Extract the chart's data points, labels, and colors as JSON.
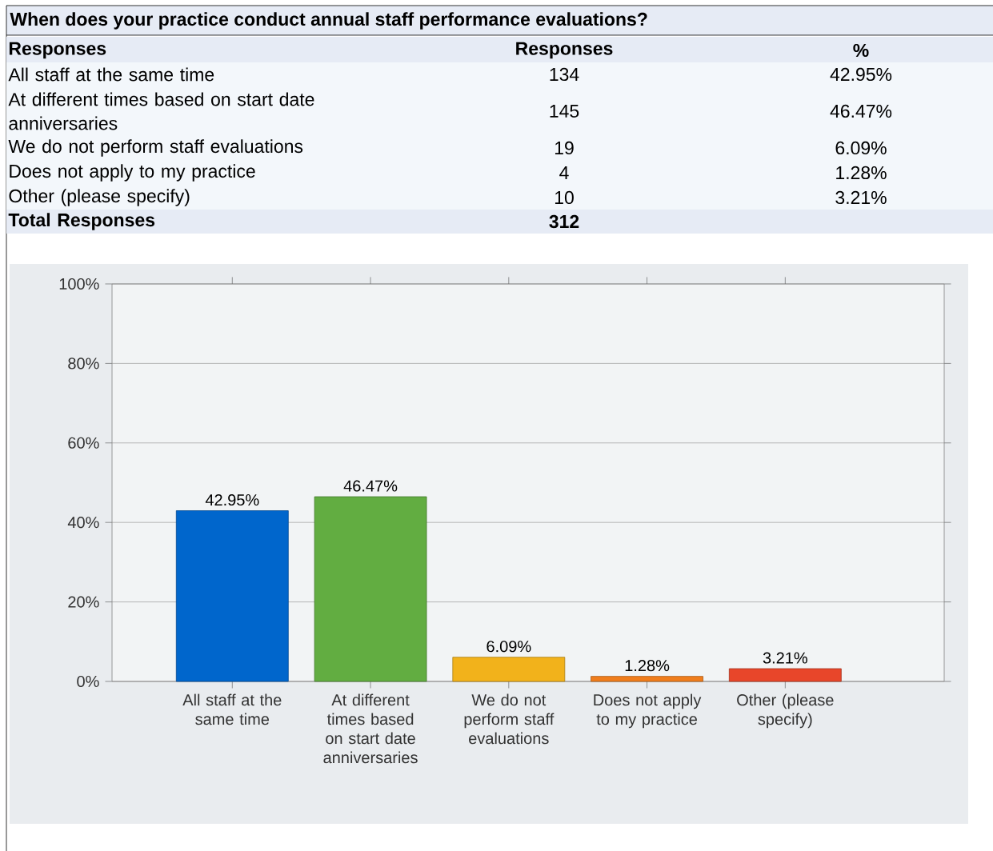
{
  "chart_data": {
    "type": "bar",
    "title": "When does your practice conduct annual staff performance evaluations?",
    "categories": [
      "All staff at the same time",
      "At different times based on start date anniversaries",
      "We do not perform staff evaluations",
      "Does not apply to my practice",
      "Other (please specify)"
    ],
    "values": [
      42.95,
      46.47,
      6.09,
      1.28,
      3.21
    ],
    "colors": [
      "#0066cc",
      "#62ad41",
      "#f2b21b",
      "#f07d1c",
      "#e8462a"
    ],
    "value_labels": [
      "42.95%",
      "46.47%",
      "6.09%",
      "1.28%",
      "3.21%"
    ],
    "ylim": [
      0,
      100
    ],
    "yticks": [
      {
        "value": 0,
        "label": "0%"
      },
      {
        "value": 20,
        "label": "20%"
      },
      {
        "value": 40,
        "label": "40%"
      },
      {
        "value": 60,
        "label": "60%"
      },
      {
        "value": 80,
        "label": "80%"
      },
      {
        "value": 100,
        "label": "100%"
      }
    ],
    "grid": "y",
    "annotations": [
      "Responses",
      "Responses",
      "%",
      "All staff at the same time",
      "134",
      "42.95%",
      "At different times based on start date anniversaries",
      "145",
      "46.47%",
      "We do not perform staff evaluations",
      "19",
      "6.09%",
      "Does not apply to my practice",
      "4",
      "1.28%",
      "Other (please specify)",
      "10",
      "3.21%",
      "Total Responses",
      "312"
    ]
  }
}
